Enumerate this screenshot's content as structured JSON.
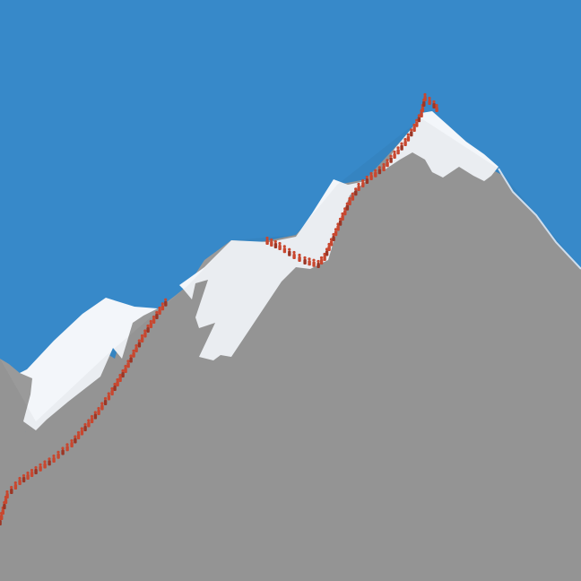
{
  "scene": {
    "subject": "illustration",
    "colors": {
      "sky": "#3a90d3",
      "sky_light": "#4a9cdc",
      "rock": "#9a9a9a",
      "rock_dark": "#8c8c8c",
      "snow": "#f3f6fa",
      "snow_shadow": "#dfe8f2",
      "ridge_outline": "#d7e6f5",
      "climbers": "#c8472f",
      "climbers_dark": "#9c3625"
    },
    "climber_count_approx": 150
  }
}
